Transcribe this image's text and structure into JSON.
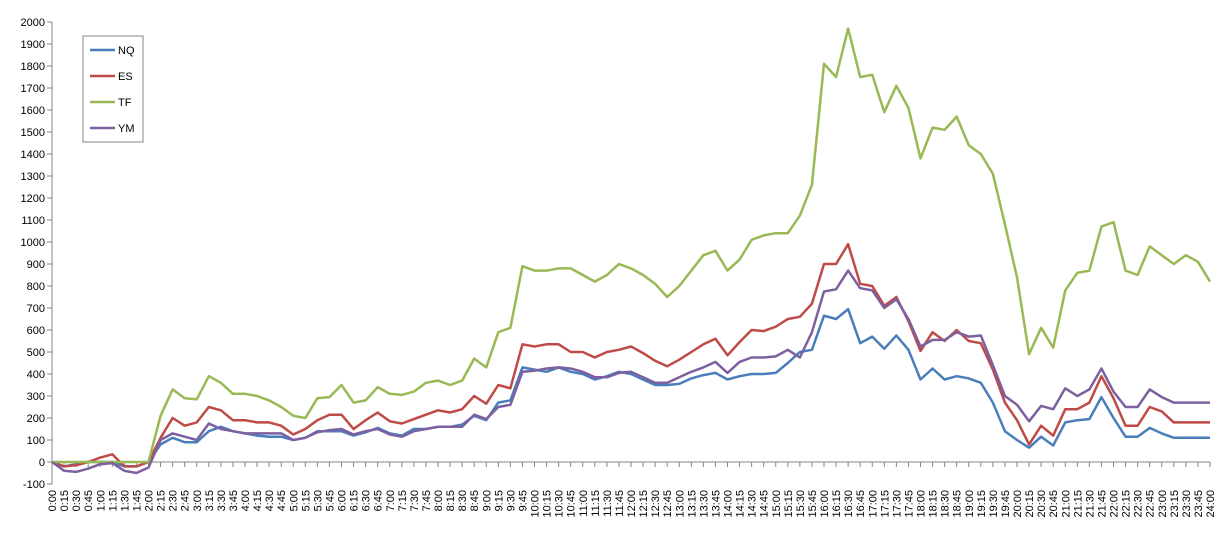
{
  "chart_data": {
    "type": "line",
    "categories": [
      "0:00",
      "0:15",
      "0:30",
      "0:45",
      "1:00",
      "1:15",
      "1:30",
      "1:45",
      "2:00",
      "2:15",
      "2:30",
      "2:45",
      "3:00",
      "3:15",
      "3:30",
      "3:45",
      "4:00",
      "4:15",
      "4:30",
      "4:45",
      "5:00",
      "5:15",
      "5:30",
      "5:45",
      "6:00",
      "6:15",
      "6:30",
      "6:45",
      "7:00",
      "7:15",
      "7:30",
      "7:45",
      "8:00",
      "8:15",
      "8:30",
      "8:45",
      "9:00",
      "9:15",
      "9:30",
      "9:45",
      "10:00",
      "10:15",
      "10:30",
      "10:45",
      "11:00",
      "11:15",
      "11:30",
      "11:45",
      "12:00",
      "12:15",
      "12:30",
      "12:45",
      "13:00",
      "13:15",
      "13:30",
      "13:45",
      "14:00",
      "14:15",
      "14:30",
      "14:45",
      "15:00",
      "15:15",
      "15:30",
      "15:45",
      "16:00",
      "16:15",
      "16:30",
      "16:45",
      "17:00",
      "17:15",
      "17:30",
      "17:45",
      "18:00",
      "18:15",
      "18:30",
      "18:45",
      "19:00",
      "19:15",
      "19:30",
      "19:45",
      "20:00",
      "20:15",
      "20:30",
      "20:45",
      "21:00",
      "21:15",
      "21:30",
      "21:45",
      "22:00",
      "22:15",
      "22:30",
      "22:45",
      "23:00",
      "23:15",
      "23:30",
      "23:45",
      "24:00"
    ],
    "series": [
      {
        "name": "NQ",
        "color": "#4a7ebb",
        "values": [
          0,
          -20,
          -10,
          0,
          0,
          0,
          -20,
          -20,
          0,
          80,
          110,
          90,
          90,
          140,
          160,
          140,
          130,
          120,
          115,
          115,
          100,
          110,
          140,
          140,
          140,
          120,
          135,
          155,
          130,
          120,
          150,
          150,
          160,
          160,
          170,
          210,
          190,
          270,
          280,
          430,
          420,
          410,
          430,
          410,
          400,
          375,
          390,
          410,
          400,
          375,
          350,
          350,
          355,
          380,
          395,
          405,
          375,
          390,
          400,
          400,
          405,
          450,
          500,
          510,
          665,
          650,
          695,
          540,
          570,
          515,
          575,
          510,
          375,
          425,
          375,
          390,
          380,
          360,
          270,
          140,
          100,
          65,
          115,
          75,
          180,
          190,
          195,
          295,
          200,
          115,
          115,
          155,
          130,
          110,
          110,
          110,
          110
        ]
      },
      {
        "name": "ES",
        "color": "#be4b48",
        "values": [
          0,
          -20,
          -15,
          0,
          20,
          35,
          -20,
          -20,
          0,
          110,
          200,
          165,
          180,
          250,
          235,
          190,
          190,
          180,
          180,
          165,
          125,
          150,
          190,
          215,
          215,
          150,
          190,
          225,
          185,
          175,
          195,
          215,
          235,
          225,
          240,
          300,
          265,
          350,
          335,
          535,
          525,
          535,
          535,
          500,
          500,
          475,
          500,
          510,
          525,
          495,
          460,
          435,
          465,
          500,
          535,
          560,
          485,
          545,
          600,
          595,
          615,
          650,
          660,
          720,
          900,
          900,
          990,
          810,
          800,
          710,
          750,
          640,
          505,
          590,
          550,
          600,
          550,
          540,
          420,
          270,
          190,
          80,
          165,
          120,
          240,
          240,
          270,
          390,
          290,
          165,
          165,
          250,
          230,
          180,
          180,
          180,
          180
        ]
      },
      {
        "name": "TF",
        "color": "#98b954",
        "values": [
          0,
          0,
          0,
          0,
          0,
          0,
          0,
          0,
          0,
          210,
          330,
          290,
          285,
          390,
          360,
          310,
          310,
          300,
          280,
          250,
          210,
          200,
          290,
          295,
          350,
          270,
          280,
          340,
          310,
          305,
          320,
          360,
          370,
          350,
          370,
          470,
          430,
          590,
          610,
          890,
          870,
          870,
          880,
          880,
          850,
          820,
          850,
          900,
          880,
          850,
          810,
          750,
          800,
          870,
          940,
          960,
          870,
          920,
          1010,
          1030,
          1040,
          1040,
          1120,
          1260,
          1810,
          1750,
          1970,
          1750,
          1760,
          1590,
          1710,
          1610,
          1380,
          1520,
          1510,
          1570,
          1440,
          1400,
          1310,
          1080,
          840,
          490,
          610,
          520,
          780,
          860,
          870,
          1070,
          1090,
          870,
          850,
          980,
          940,
          900,
          940,
          910,
          820
        ]
      },
      {
        "name": "YM",
        "color": "#7d60a0",
        "values": [
          0,
          -40,
          -45,
          -30,
          -10,
          -5,
          -40,
          -50,
          -25,
          100,
          130,
          115,
          100,
          175,
          150,
          140,
          130,
          130,
          130,
          130,
          100,
          110,
          135,
          145,
          150,
          125,
          140,
          150,
          125,
          115,
          140,
          150,
          160,
          160,
          160,
          215,
          195,
          250,
          260,
          410,
          415,
          425,
          430,
          425,
          410,
          385,
          385,
          405,
          410,
          385,
          360,
          360,
          385,
          410,
          430,
          455,
          405,
          455,
          475,
          475,
          480,
          510,
          475,
          590,
          775,
          785,
          870,
          790,
          780,
          700,
          740,
          650,
          525,
          555,
          555,
          590,
          570,
          575,
          440,
          300,
          260,
          185,
          255,
          240,
          335,
          300,
          330,
          425,
          320,
          250,
          250,
          330,
          295,
          270,
          270,
          270,
          270
        ]
      }
    ],
    "ylim": [
      -100,
      2000
    ],
    "yticks": [
      -100,
      0,
      100,
      200,
      300,
      400,
      500,
      600,
      700,
      800,
      900,
      1000,
      1100,
      1200,
      1300,
      1400,
      1500,
      1600,
      1700,
      1800,
      1900,
      2000
    ],
    "grid": false,
    "legend": "upper left"
  }
}
